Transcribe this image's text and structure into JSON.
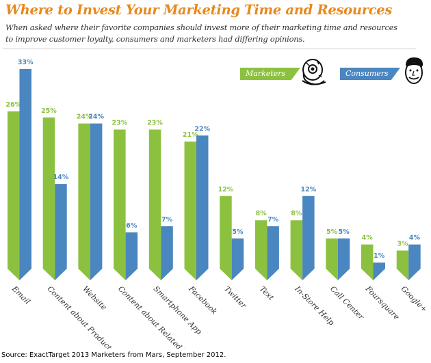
{
  "header": {
    "title": "Where to Invest Your Marketing Time and Resources",
    "subtitle_line1": "When asked where their favorite companies should invest more of their marketing time and resources",
    "subtitle_line2": "to improve customer loyalty, consumers and marketers had differing opinions."
  },
  "legend": {
    "marketers": "Marketers",
    "consumers": "Consumers"
  },
  "source": "Source: ExactTarget 2013 Marketers from Mars, September 2012.",
  "colors": {
    "marketers": "#8cc13f",
    "consumers": "#4a86c0",
    "title": "#e8891d"
  },
  "chart_data": {
    "type": "bar",
    "title": "Where to Invest Your Marketing Time and Resources",
    "xlabel": "",
    "ylabel": "",
    "ylim": [
      0,
      33
    ],
    "grid": false,
    "legend_position": "top-right",
    "categories": [
      "Email",
      "Content about Products",
      "Website",
      "Content about Related Topics",
      "Smartphone App",
      "Facebook",
      "Twitter",
      "Text",
      "In-Store Help",
      "Call Center",
      "Foursquare",
      "Google+"
    ],
    "series": [
      {
        "name": "Marketers",
        "values": [
          26,
          25,
          24,
          23,
          23,
          21,
          12,
          8,
          8,
          5,
          4,
          3
        ],
        "labels": [
          "26%",
          "25%",
          "24%",
          "23%",
          "23%",
          "21%",
          "12%",
          "8%",
          "8%",
          "5%",
          "4%",
          "3%"
        ]
      },
      {
        "name": "Consumers",
        "values": [
          33,
          14,
          24,
          6,
          7,
          22,
          5,
          7,
          12,
          5,
          1,
          4
        ],
        "labels": [
          "33%",
          "14%",
          "24%",
          "6%",
          "7%",
          "22%",
          "5%",
          "7%",
          "12%",
          "5%",
          "1%",
          "4%"
        ]
      }
    ]
  }
}
